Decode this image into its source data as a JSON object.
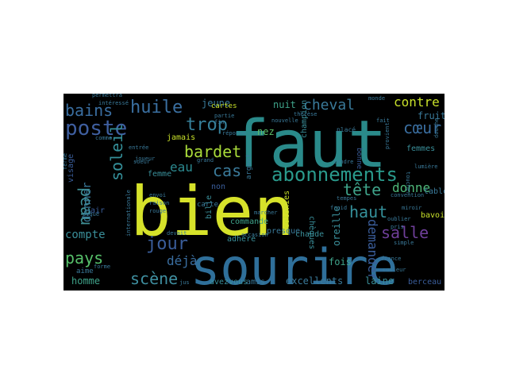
{
  "wordcloud": {
    "background": "#000000",
    "words": [
      {
        "text": "faut",
        "color": "#2a8a8a"
      },
      {
        "text": "bien",
        "color": "#d6e22a"
      },
      {
        "text": "sourire",
        "color": "#2f6f9a"
      },
      {
        "text": "abonnements",
        "color": "#2a9a8c"
      },
      {
        "text": "poste",
        "color": "#3f5fa0"
      },
      {
        "text": "huile",
        "color": "#3a6fa0"
      },
      {
        "text": "trop",
        "color": "#36809a"
      },
      {
        "text": "bains",
        "color": "#3a6ea0"
      },
      {
        "text": "peau",
        "color": "#3f8f95"
      },
      {
        "text": "soleil",
        "color": "#35909a"
      },
      {
        "text": "bardet",
        "color": "#a9db3a"
      },
      {
        "text": "eau",
        "color": "#2c8a90"
      },
      {
        "text": "cas",
        "color": "#3a7a9a"
      },
      {
        "text": "tête",
        "color": "#3fa38a"
      },
      {
        "text": "haut",
        "color": "#35909a"
      },
      {
        "text": "salle",
        "color": "#6f3f9a"
      },
      {
        "text": "donne",
        "color": "#4fb87a"
      },
      {
        "text": "pays",
        "color": "#56c06a"
      },
      {
        "text": "jour",
        "color": "#3a5d9a"
      },
      {
        "text": "scène",
        "color": "#3f8fa0"
      },
      {
        "text": "cheval",
        "color": "#3a7a9a"
      },
      {
        "text": "cœur",
        "color": "#3a6ea0"
      },
      {
        "text": "contre",
        "color": "#c8e02a"
      },
      {
        "text": "compte",
        "color": "#3a8f9a"
      },
      {
        "text": "demander",
        "color": "#3a5d9a"
      },
      {
        "text": "donner",
        "color": "#3a7a9a"
      },
      {
        "text": "déjà",
        "color": "#3a6ea0"
      },
      {
        "text": "nuit",
        "color": "#3fa38a"
      },
      {
        "text": "jeune",
        "color": "#3a7a9a"
      },
      {
        "text": "nez",
        "color": "#5fc06a"
      },
      {
        "text": "oreille",
        "color": "#3a8f9a"
      },
      {
        "text": "excellents",
        "color": "#3a7a9a"
      },
      {
        "text": "laine",
        "color": "#3a8f9a"
      },
      {
        "text": "homme",
        "color": "#3fa38a"
      },
      {
        "text": "fois",
        "color": "#3fa38a"
      },
      {
        "text": "jamais",
        "color": "#c8e02a"
      },
      {
        "text": "femme",
        "color": "#3a8f9a"
      },
      {
        "text": "visage",
        "color": "#3a5d9a"
      },
      {
        "text": "fruits",
        "color": "#3a7a9a"
      },
      {
        "text": "femmes",
        "color": "#3a8f9a"
      },
      {
        "text": "table",
        "color": "#3a7a9a"
      },
      {
        "text": "bavoir",
        "color": "#c8e02a"
      },
      {
        "text": "berceau",
        "color": "#3a5d9a"
      },
      {
        "text": "atténuera",
        "color": "#3fa38a"
      },
      {
        "text": "chèques",
        "color": "#3a8f9a"
      },
      {
        "text": "colonies",
        "color": "#c8e02a"
      },
      {
        "text": "champion",
        "color": "#3a8f9a"
      },
      {
        "text": "presque",
        "color": "#3a7a9a"
      },
      {
        "text": "chaude",
        "color": "#3a8f9a"
      },
      {
        "text": "commande",
        "color": "#3fa38a"
      },
      {
        "text": "adhéré",
        "color": "#3a8f9a"
      },
      {
        "text": "avezvous",
        "color": "#3a8f9a"
      },
      {
        "text": "amis",
        "color": "#3a7a9a"
      },
      {
        "text": "bille",
        "color": "#3a8f9a"
      },
      {
        "text": "carte",
        "color": "#3a7a9a"
      },
      {
        "text": "cartes",
        "color": "#c8e02a"
      },
      {
        "text": "non",
        "color": "#3a5d9a"
      },
      {
        "text": "argent",
        "color": "#3a7a9a"
      },
      {
        "text": "air",
        "color": "#3a5d9a"
      },
      {
        "text": "aime",
        "color": "#3a7a9a"
      },
      {
        "text": "bonne",
        "color": "#3a5d9a"
      },
      {
        "text": "placé",
        "color": "#3a7a9a"
      },
      {
        "text": "marcher",
        "color": "#3a7a9a"
      },
      {
        "text": "thérèse",
        "color": "#3a7a9a"
      },
      {
        "text": "partie",
        "color": "#3a7a9a"
      },
      {
        "text": "permettra",
        "color": "#3a7a9a"
      },
      {
        "text": "intéressé",
        "color": "#3a7a9a"
      },
      {
        "text": "monde",
        "color": "#3a7a9a"
      },
      {
        "text": "lumière",
        "color": "#3a7a9a"
      },
      {
        "text": "toucher",
        "color": "#3a7a9a"
      },
      {
        "text": "convention",
        "color": "#3a7a9a"
      },
      {
        "text": "simple",
        "color": "#3a7a9a"
      },
      {
        "text": "tempes",
        "color": "#3a7a9a"
      },
      {
        "text": "france",
        "color": "#3a7a9a"
      },
      {
        "text": "couleur",
        "color": "#3a7a9a"
      },
      {
        "text": "oublier",
        "color": "#3a7a9a"
      },
      {
        "text": "pris",
        "color": "#3a7a9a"
      },
      {
        "text": "froid",
        "color": "#3a7a9a"
      },
      {
        "text": "provient",
        "color": "#3a7a9a"
      },
      {
        "text": "miroir",
        "color": "#3a7a9a"
      },
      {
        "text": "fait",
        "color": "#3a7a9a"
      },
      {
        "text": "soeur",
        "color": "#3a7a9a"
      },
      {
        "text": "envoi",
        "color": "#3a7a9a"
      },
      {
        "text": "raison",
        "color": "#3a7a9a"
      },
      {
        "text": "rouge",
        "color": "#3a7a9a"
      },
      {
        "text": "devait",
        "color": "#3a7a9a"
      },
      {
        "text": "occasion",
        "color": "#3a7a9a"
      },
      {
        "text": "jus",
        "color": "#3a7a9a"
      },
      {
        "text": "internationale",
        "color": "#3a7a9a"
      },
      {
        "text": "piqué",
        "color": "#3a7a9a"
      },
      {
        "text": "fin",
        "color": "#3a7a9a"
      },
      {
        "text": "grand",
        "color": "#3a7a9a"
      },
      {
        "text": "réponse",
        "color": "#3a7a9a"
      },
      {
        "text": "nouvelle",
        "color": "#3a7a9a"
      },
      {
        "text": "entrée",
        "color": "#3a7a9a"
      },
      {
        "text": "joueur",
        "color": "#3a7a9a"
      },
      {
        "text": "forme",
        "color": "#3a7a9a"
      },
      {
        "text": "comme",
        "color": "#3a7a9a"
      },
      {
        "text": "douche",
        "color": "#3a7a9a"
      },
      {
        "text": "tendre",
        "color": "#3a7a9a"
      },
      {
        "text": "ferme",
        "color": "#3a7a9a"
      }
    ]
  }
}
